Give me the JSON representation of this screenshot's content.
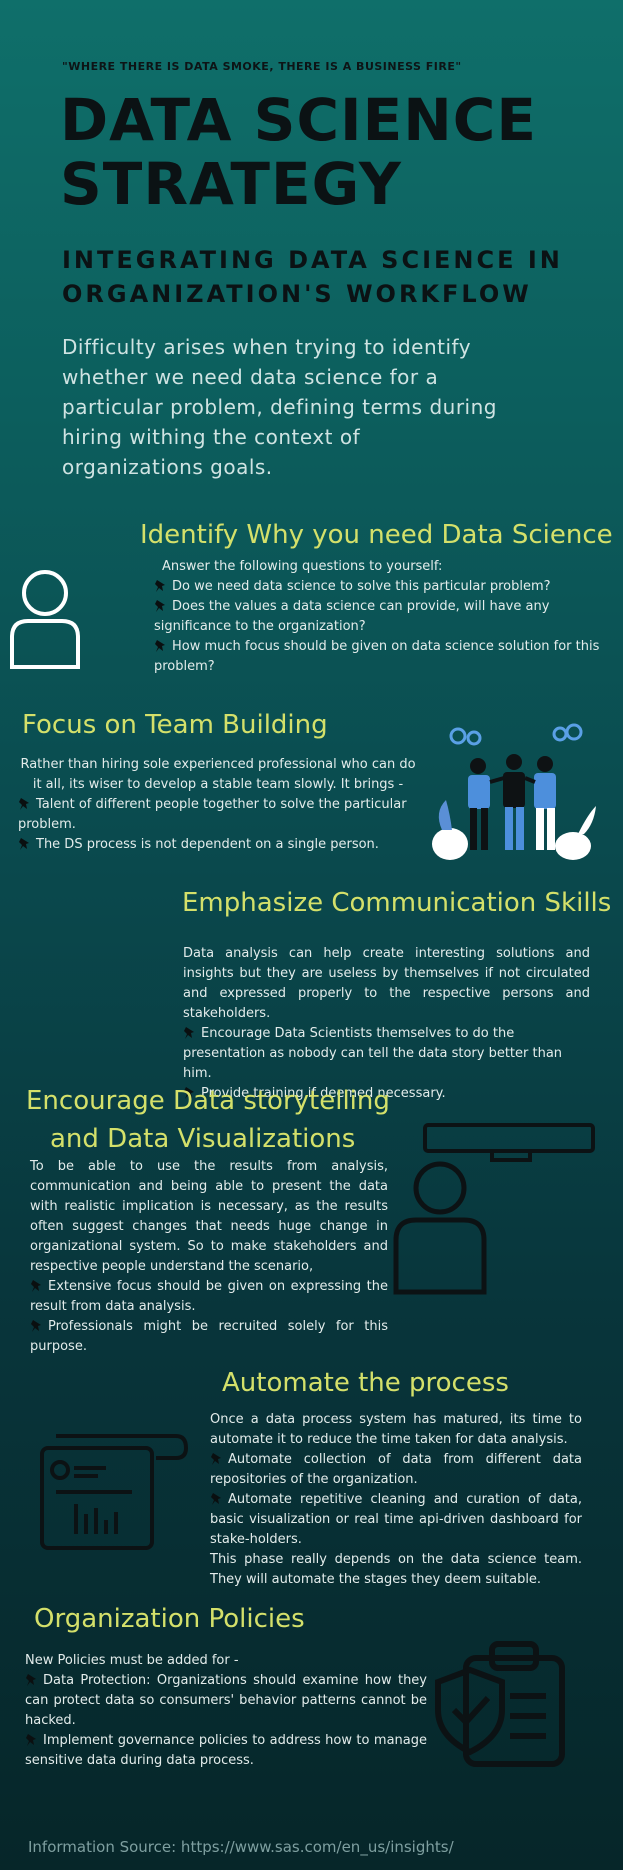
{
  "quote": "\"WHERE THERE IS DATA SMOKE, THERE IS A BUSINESS FIRE\"",
  "title_line1": "DATA SCIENCE",
  "title_line2": "STRATEGY",
  "subtitle_line1": "INTEGRATING DATA SCIENCE IN",
  "subtitle_line2": "ORGANIZATION'S WORKFLOW",
  "intro": "Difficulty arises when trying to identify whether we need data science for a particular problem, defining terms during hiring withing the context of organizations goals.",
  "sections": {
    "identify": {
      "heading": "Identify Why you need Data Science",
      "lead": "Answer the following questions to yourself:",
      "bullets": [
        "Do we need data science to solve this particular problem?",
        "Does the values a data science can provide, will have any significance to the organization?",
        "How much focus should be given on data science solution for this problem?"
      ]
    },
    "team": {
      "heading": "Focus on Team Building",
      "lead": "Rather than hiring sole experienced professional who can do it all, its wiser to develop a stable team slowly. It brings -",
      "bullets": [
        "Talent of different people together to solve the particular problem.",
        "The DS process is not dependent on a single person."
      ]
    },
    "communication": {
      "heading": "Emphasize Communication Skills",
      "lead": "Data analysis can help create interesting solutions and insights but they are useless by themselves if not circulated and expressed properly to the respective persons and stakeholders.",
      "bullets": [
        "Encourage Data Scientists themselves to do the presentation as nobody can tell the data story better than him.",
        "Provide training if deemed necessary."
      ]
    },
    "storytelling": {
      "heading_line1": "Encourage Data storytelling",
      "heading_line2": "and Data Visualizations",
      "lead": "To be able to use the results from analysis, communication and being able to present the data with realistic implication is necessary, as the results often suggest changes that needs huge change in organizational system. So to make stakeholders and respective people understand the scenario,",
      "bullets": [
        "Extensive focus should be given on expressing the result from data analysis.",
        "Professionals might be recruited solely for this purpose."
      ]
    },
    "automate": {
      "heading": "Automate the process",
      "lead": "Once a data process system has matured, its time to automate it to reduce the time taken for data analysis.",
      "bullets": [
        "Automate collection of data from different data repositories of the organization.",
        "Automate repetitive cleaning and curation of data, basic visualization or real time api-driven dashboard for stake-holders."
      ],
      "closing": "This phase really depends on the data science team. They will automate the stages they deem suitable."
    },
    "policies": {
      "heading": "Organization Policies",
      "lead": "New Policies must be added for -",
      "bullets": [
        "Data Protection: Organizations should examine how they can protect data so consumers' behavior patterns cannot be hacked.",
        "Implement governance policies to address how to manage sensitive data during data process."
      ]
    }
  },
  "footer": "Information Source: https://www.sas.com/en_us/insights/",
  "icons": [
    "person-outline-icon",
    "team-illustration-icon",
    "presenter-icon",
    "document-chart-icon",
    "shield-clipboard-icon",
    "pushpin-icon"
  ],
  "colors": {
    "accent": "#d4e06a",
    "background_top": "#0f6f6a",
    "background_bottom": "#062629",
    "title": "#0b1214"
  }
}
